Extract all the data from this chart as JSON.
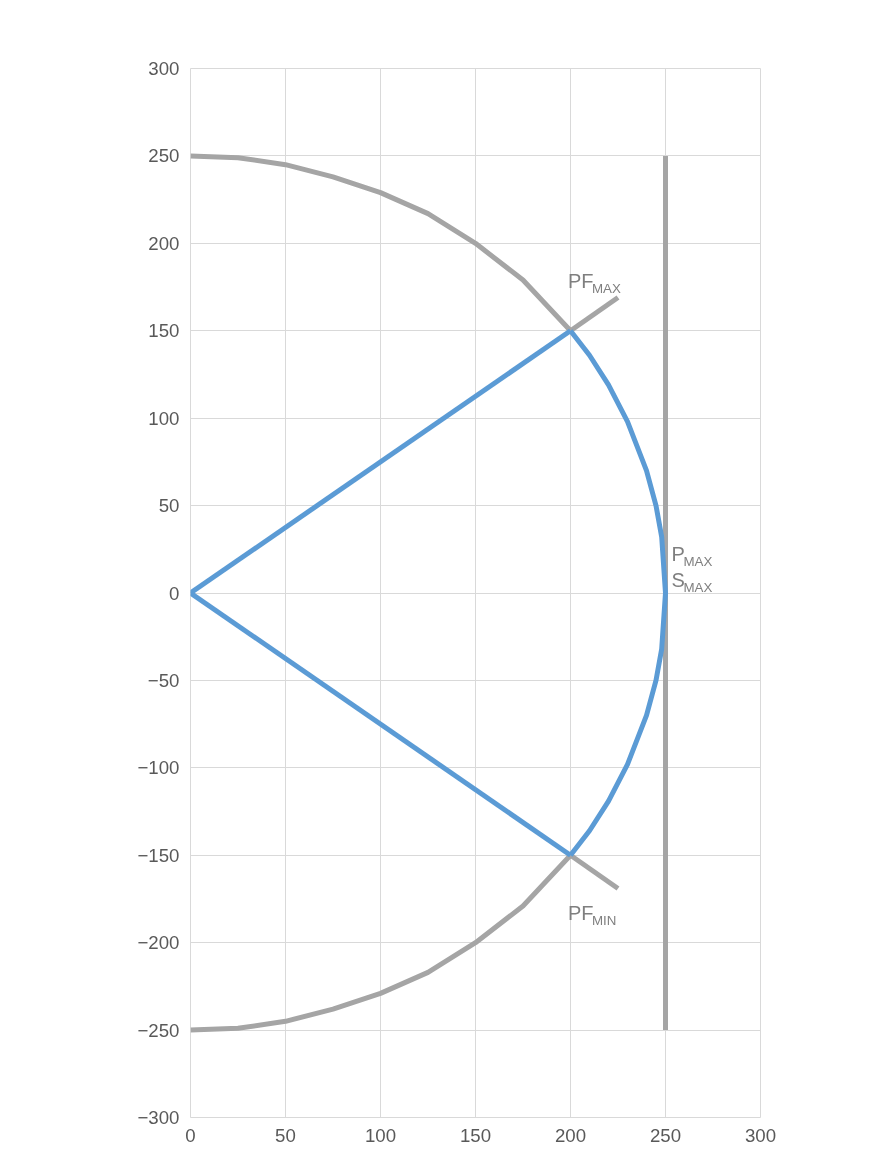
{
  "chart_data": {
    "type": "line",
    "xlim": [
      0,
      300
    ],
    "ylim": [
      -300,
      300
    ],
    "xticks": [
      0,
      50,
      100,
      150,
      200,
      250,
      300
    ],
    "yticks": [
      -300,
      -250,
      -200,
      -150,
      -100,
      -50,
      0,
      50,
      100,
      150,
      200,
      250,
      300
    ],
    "grid": true,
    "series": [
      {
        "color": "#a5a5a5",
        "x": [
          0,
          25,
          50,
          75,
          100,
          125,
          150,
          175,
          200
        ],
        "values": [
          250,
          249,
          245,
          238,
          229,
          217,
          200,
          179,
          150
        ]
      },
      {
        "color": "#a5a5a5",
        "x": [
          0,
          25,
          50,
          75,
          100,
          125,
          150,
          175,
          200
        ],
        "values": [
          -250,
          -249,
          -245,
          -238,
          -229,
          -217,
          -200,
          -179,
          -150
        ]
      },
      {
        "color": "#a5a5a5",
        "x": [
          200,
          225
        ],
        "values": [
          150,
          169
        ]
      },
      {
        "color": "#a5a5a5",
        "x": [
          200,
          225
        ],
        "values": [
          -150,
          -169
        ]
      },
      {
        "color": "#a5a5a5",
        "x": [
          250,
          250
        ],
        "values": [
          -250,
          250
        ]
      },
      {
        "color": "#5b9bd5",
        "x": [
          0,
          200
        ],
        "values": [
          0,
          150
        ]
      },
      {
        "color": "#5b9bd5",
        "x": [
          0,
          200
        ],
        "values": [
          0,
          -150
        ]
      },
      {
        "color": "#5b9bd5",
        "x": [
          200,
          210,
          220,
          230,
          240,
          245,
          248,
          250,
          248,
          245,
          240,
          230,
          220,
          210,
          200
        ],
        "values": [
          150,
          136,
          119,
          98,
          70,
          50,
          32,
          0,
          -32,
          -50,
          -70,
          -98,
          -119,
          -136,
          -150
        ]
      }
    ],
    "annotations": [
      "PF$_{MAX}$",
      "P$_{MAX}$",
      "S$_{MAX}$",
      "PF$_{MIN}$"
    ]
  }
}
